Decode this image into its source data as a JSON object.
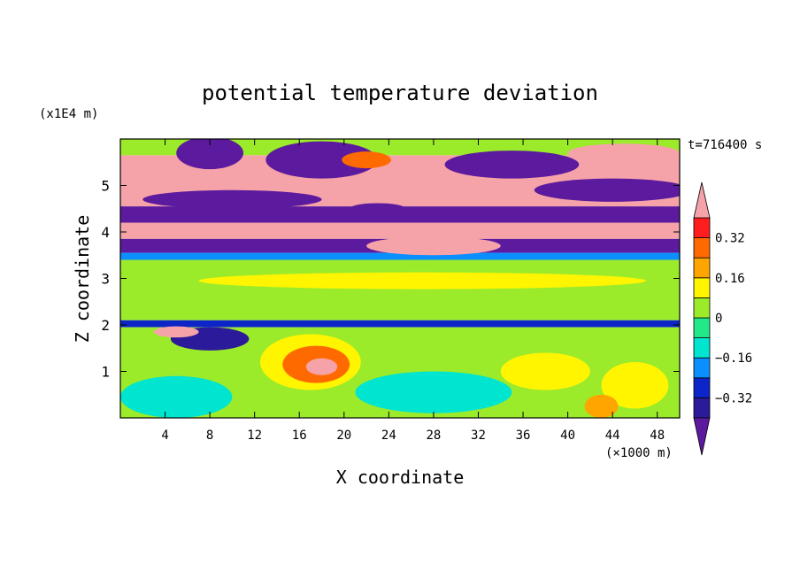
{
  "chart_data": {
    "type": "heatmap",
    "title": "potential temperature deviation",
    "xlabel": "X coordinate",
    "ylabel": "Z coordinate",
    "x_unit": "(×1000 m)",
    "y_unit": "(x1E4 m)",
    "time_label": "t=716400 s",
    "xlim": [
      0,
      50
    ],
    "ylim": [
      0,
      6
    ],
    "xticks": [
      4,
      8,
      12,
      16,
      20,
      24,
      28,
      32,
      36,
      40,
      44,
      48
    ],
    "yticks": [
      1,
      2,
      3,
      4,
      5
    ],
    "colorbar": {
      "levels": [
        -0.4,
        -0.32,
        -0.24,
        -0.16,
        -0.08,
        0,
        0.08,
        0.16,
        0.24,
        0.32,
        0.4
      ],
      "labels": [
        "0.32",
        "0.16",
        "0",
        "−0.16",
        "−0.32"
      ],
      "label_values": [
        0.32,
        0.16,
        0,
        -0.16,
        -0.32
      ],
      "colors_low_to_high": [
        "#5c1a9e",
        "#2b1a99",
        "#0d24c8",
        "#0a8fff",
        "#00e5d0",
        "#22e88a",
        "#9ceb2a",
        "#fff500",
        "#ffa500",
        "#ff6a00",
        "#ff1e1e",
        "#f5a3a8"
      ],
      "extend": "both"
    },
    "bands": [
      {
        "z0": 5.65,
        "z1": 6.0,
        "value": 0.05
      },
      {
        "z0": 5.2,
        "z1": 5.65,
        "value": 0.5
      },
      {
        "z0": 4.55,
        "z1": 5.2,
        "value": 0.5
      },
      {
        "z0": 4.2,
        "z1": 4.55,
        "value": -0.45
      },
      {
        "z0": 3.85,
        "z1": 4.2,
        "value": 0.5
      },
      {
        "z0": 3.55,
        "z1": 3.85,
        "value": -0.45
      },
      {
        "z0": 3.4,
        "z1": 3.55,
        "value": -0.2
      },
      {
        "z0": 2.1,
        "z1": 3.4,
        "value": 0.02
      },
      {
        "z0": 1.95,
        "z1": 2.1,
        "value": -0.3
      },
      {
        "z0": 0.0,
        "z1": 1.95,
        "value": 0.03
      }
    ],
    "blobs": [
      {
        "x": 8,
        "z": 5.7,
        "rx": 3,
        "rz": 0.35,
        "value": -0.45
      },
      {
        "x": 18,
        "z": 5.55,
        "rx": 5,
        "rz": 0.4,
        "value": -0.45
      },
      {
        "x": 22,
        "z": 5.55,
        "rx": 2.2,
        "rz": 0.18,
        "value": 0.3
      },
      {
        "x": 35,
        "z": 5.45,
        "rx": 6,
        "rz": 0.3,
        "value": -0.45
      },
      {
        "x": 45,
        "z": 5.7,
        "rx": 5,
        "rz": 0.2,
        "value": 0.5
      },
      {
        "x": 44,
        "z": 4.9,
        "rx": 7,
        "rz": 0.25,
        "value": -0.45
      },
      {
        "x": 10,
        "z": 4.7,
        "rx": 8,
        "rz": 0.2,
        "value": -0.45
      },
      {
        "x": 23,
        "z": 4.5,
        "rx": 2.5,
        "rz": 0.12,
        "value": -0.45
      },
      {
        "x": 28,
        "z": 3.7,
        "rx": 6,
        "rz": 0.2,
        "value": 0.5
      },
      {
        "x": 27,
        "z": 2.95,
        "rx": 20,
        "rz": 0.18,
        "value": 0.1
      },
      {
        "x": 8,
        "z": 1.7,
        "rx": 3.5,
        "rz": 0.25,
        "value": -0.35
      },
      {
        "x": 5,
        "z": 1.85,
        "rx": 2,
        "rz": 0.12,
        "value": 0.5
      },
      {
        "x": 17,
        "z": 1.2,
        "rx": 4.5,
        "rz": 0.6,
        "value": 0.15
      },
      {
        "x": 17.5,
        "z": 1.15,
        "rx": 3,
        "rz": 0.4,
        "value": 0.26
      },
      {
        "x": 18,
        "z": 1.1,
        "rx": 1.4,
        "rz": 0.18,
        "value": 0.5
      },
      {
        "x": 5,
        "z": 0.45,
        "rx": 5,
        "rz": 0.45,
        "value": -0.12
      },
      {
        "x": 28,
        "z": 0.55,
        "rx": 7,
        "rz": 0.45,
        "value": -0.12
      },
      {
        "x": 46,
        "z": 0.7,
        "rx": 3,
        "rz": 0.5,
        "value": 0.12
      },
      {
        "x": 43,
        "z": 0.25,
        "rx": 1.5,
        "rz": 0.25,
        "value": 0.22
      },
      {
        "x": 38,
        "z": 1.0,
        "rx": 4,
        "rz": 0.4,
        "value": 0.1
      }
    ]
  }
}
